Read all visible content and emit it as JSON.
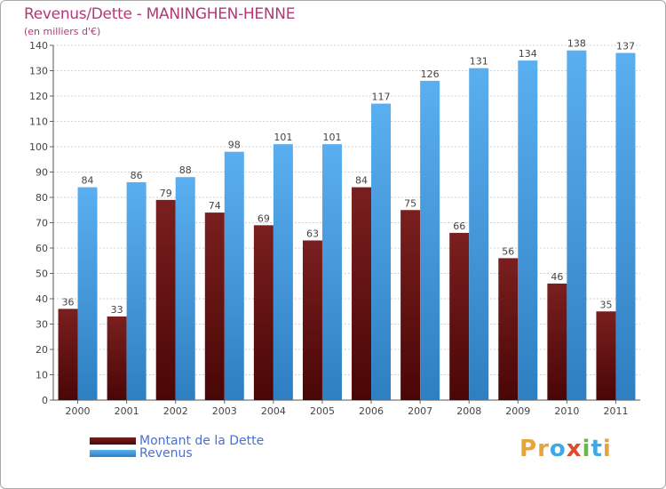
{
  "title": "Revenus/Dette - MANINGHEN-HENNE",
  "subtitle": "(en milliers d'€)",
  "logo": {
    "text": "Proxiti",
    "letters": [
      "P",
      "r",
      "o",
      "x",
      "i",
      "t",
      "i"
    ]
  },
  "colors": {
    "title": "#b03a78",
    "legend_text": "#4a6fd6",
    "dette_top": "#7a1f1f",
    "dette_bottom": "#4a0606",
    "revenus_top": "#5aaff0",
    "revenus_bottom": "#2e7fc2",
    "logo_letters": [
      "#e8a33a",
      "#e8a33a",
      "#3fa9e0",
      "#e04a2a",
      "#6bb84a",
      "#3fa9e0",
      "#e8a33a"
    ]
  },
  "chart_data": {
    "type": "bar",
    "categories": [
      "2000",
      "2001",
      "2002",
      "2003",
      "2004",
      "2005",
      "2006",
      "2007",
      "2008",
      "2009",
      "2010",
      "2011"
    ],
    "series": [
      {
        "name": "Montant de la Dette",
        "values": [
          36,
          33,
          79,
          74,
          69,
          63,
          84,
          75,
          66,
          56,
          46,
          35
        ]
      },
      {
        "name": "Revenus",
        "values": [
          84,
          86,
          88,
          98,
          101,
          101,
          117,
          126,
          131,
          134,
          138,
          137
        ]
      }
    ],
    "ylim": [
      0,
      140
    ],
    "yticks": [
      0,
      10,
      20,
      30,
      40,
      50,
      60,
      70,
      80,
      90,
      100,
      110,
      120,
      130,
      140
    ],
    "grid": true,
    "legend_position": "bottom-left"
  }
}
